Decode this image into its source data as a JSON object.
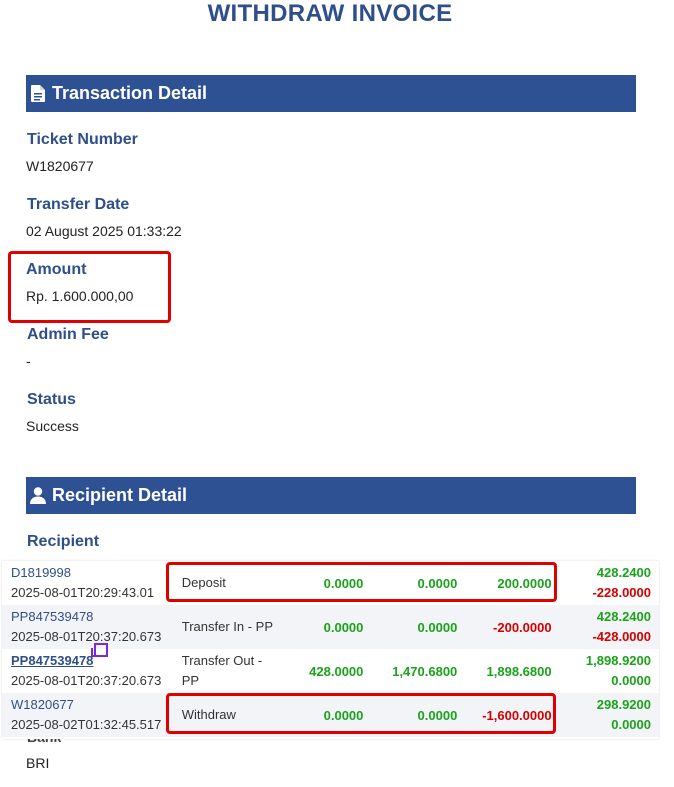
{
  "page_title": "WITHDRAW INVOICE",
  "transaction_section": {
    "title": "Transaction Detail",
    "icon": "document-icon",
    "fields": [
      {
        "label": "Ticket Number",
        "value": "W1820677"
      },
      {
        "label": "Transfer Date",
        "value": "02 August 2025 01:33:22"
      },
      {
        "label": "Amount",
        "value": "Rp. 1.600.000,00"
      },
      {
        "label": "Admin Fee",
        "value": "-"
      },
      {
        "label": "Status",
        "value": "Success"
      }
    ]
  },
  "recipient_section": {
    "title": "Recipient Detail",
    "icon": "user-icon",
    "recipient_label": "Recipient",
    "partial_label": "Bank",
    "bank_value": "BRI"
  },
  "transactions": [
    {
      "id": "D1819998",
      "timestamp": "2025-08-01T20:29:43.01",
      "type": "Deposit",
      "v1": "0.0000",
      "v2": "0.0000",
      "v3": "200.0000",
      "bal_top": "428.2400",
      "bal_bottom": "-228.0000"
    },
    {
      "id": "PP847539478",
      "timestamp": "2025-08-01T20:37:20.673",
      "type": "Transfer In - PP",
      "v1": "0.0000",
      "v2": "0.0000",
      "v3": "-200.0000",
      "bal_top": "428.2400",
      "bal_bottom": "-428.0000"
    },
    {
      "id": "PP847539478",
      "timestamp": "2025-08-01T20:37:20.673",
      "type": "Transfer Out - PP",
      "v1": "428.0000",
      "v2": "1,470.6800",
      "v3": "1,898.6800",
      "bal_top": "1,898.9200",
      "bal_bottom": "0.0000"
    },
    {
      "id": "W1820677",
      "timestamp": "2025-08-02T01:32:45.517",
      "type": "Withdraw",
      "v1": "0.0000",
      "v2": "0.0000",
      "v3": "-1,600.0000",
      "bal_top": "298.9200",
      "bal_bottom": "0.0000"
    }
  ],
  "colors": {
    "header_bar": "#2e5194",
    "label": "#2e4f8a",
    "positive": "#1aa31a",
    "negative": "#d40000",
    "highlight": "#e00000"
  }
}
